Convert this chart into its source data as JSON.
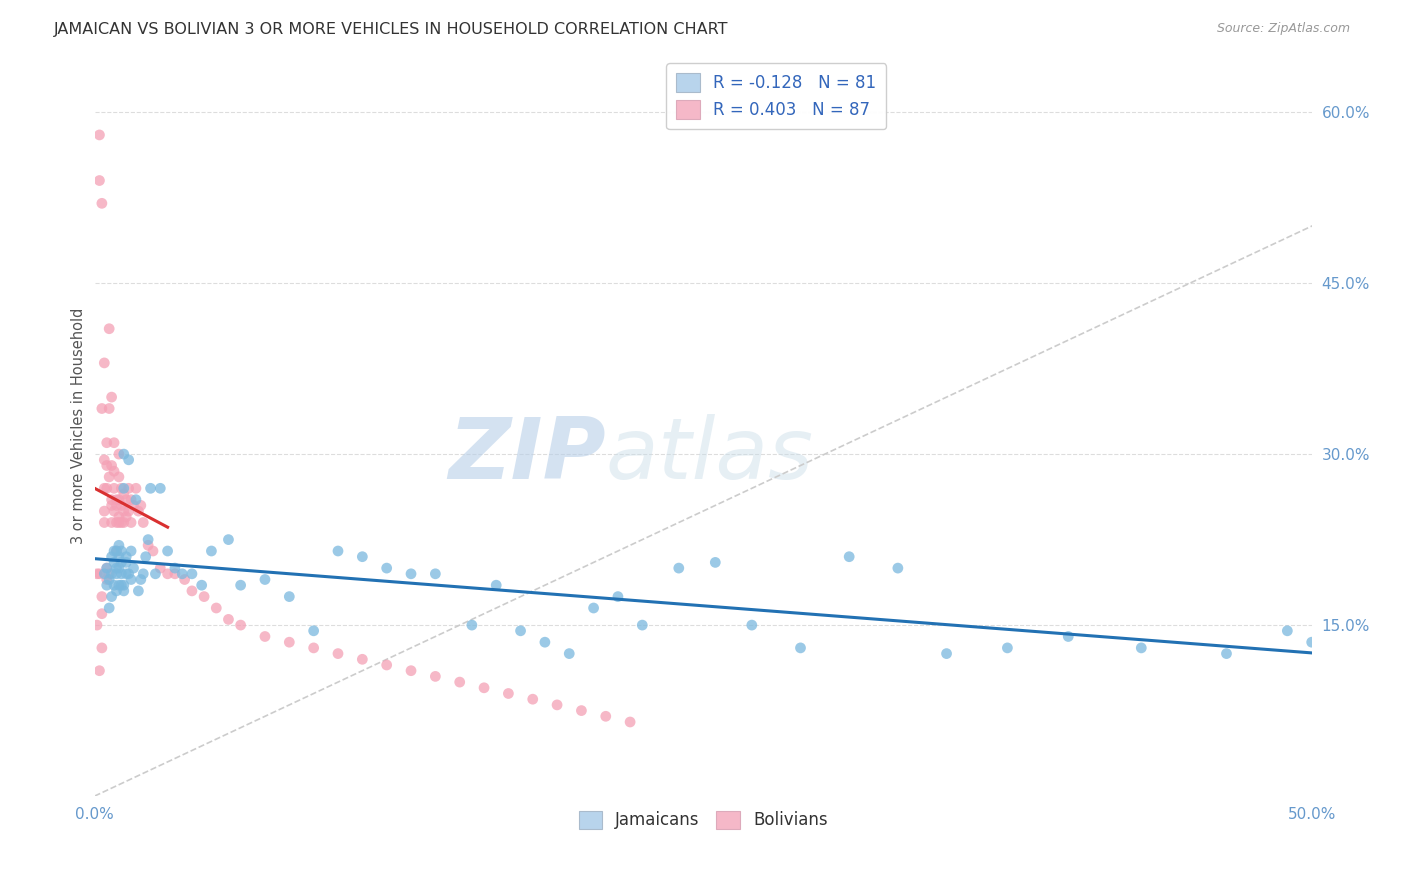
{
  "title": "JAMAICAN VS BOLIVIAN 3 OR MORE VEHICLES IN HOUSEHOLD CORRELATION CHART",
  "source": "Source: ZipAtlas.com",
  "ylabel": "3 or more Vehicles in Household",
  "xlim": [
    0.0,
    0.5
  ],
  "ylim": [
    0.0,
    0.65
  ],
  "xticks": [
    0.0,
    0.1,
    0.2,
    0.3,
    0.4,
    0.5
  ],
  "yticks_right": [
    0.15,
    0.3,
    0.45,
    0.6
  ],
  "ytick_labels_right": [
    "15.0%",
    "30.0%",
    "45.0%",
    "60.0%"
  ],
  "xtick_labels": [
    "0.0%",
    "",
    "",
    "",
    "",
    "50.0%"
  ],
  "legend_r1": "-0.128",
  "legend_n1": "81",
  "legend_r2": "0.403",
  "legend_n2": "87",
  "jamaican_color": "#7ab8de",
  "bolivian_color": "#f4a0b5",
  "trend_jamaican_color": "#2271b3",
  "trend_bolivian_color": "#d93030",
  "diagonal_color": "#cccccc",
  "background_color": "#ffffff",
  "grid_color": "#dddddd",
  "title_color": "#333333",
  "axis_color": "#6699cc",
  "watermark_zip": "ZIP",
  "watermark_atlas": "atlas",
  "jamaican_x": [
    0.004,
    0.005,
    0.005,
    0.006,
    0.006,
    0.007,
    0.007,
    0.007,
    0.008,
    0.008,
    0.008,
    0.009,
    0.009,
    0.009,
    0.009,
    0.01,
    0.01,
    0.01,
    0.01,
    0.011,
    0.011,
    0.011,
    0.011,
    0.012,
    0.012,
    0.012,
    0.012,
    0.013,
    0.013,
    0.013,
    0.014,
    0.014,
    0.015,
    0.015,
    0.016,
    0.017,
    0.018,
    0.019,
    0.02,
    0.021,
    0.022,
    0.023,
    0.025,
    0.027,
    0.03,
    0.033,
    0.036,
    0.04,
    0.044,
    0.048,
    0.055,
    0.06,
    0.07,
    0.08,
    0.09,
    0.1,
    0.11,
    0.12,
    0.13,
    0.14,
    0.155,
    0.165,
    0.175,
    0.185,
    0.195,
    0.205,
    0.215,
    0.225,
    0.24,
    0.255,
    0.27,
    0.29,
    0.31,
    0.33,
    0.35,
    0.375,
    0.4,
    0.43,
    0.465,
    0.49,
    0.5
  ],
  "jamaican_y": [
    0.195,
    0.185,
    0.2,
    0.165,
    0.19,
    0.175,
    0.195,
    0.21,
    0.185,
    0.205,
    0.215,
    0.18,
    0.195,
    0.2,
    0.215,
    0.185,
    0.2,
    0.21,
    0.22,
    0.185,
    0.195,
    0.205,
    0.215,
    0.18,
    0.3,
    0.27,
    0.185,
    0.195,
    0.205,
    0.21,
    0.195,
    0.295,
    0.215,
    0.19,
    0.2,
    0.26,
    0.18,
    0.19,
    0.195,
    0.21,
    0.225,
    0.27,
    0.195,
    0.27,
    0.215,
    0.2,
    0.195,
    0.195,
    0.185,
    0.215,
    0.225,
    0.185,
    0.19,
    0.175,
    0.145,
    0.215,
    0.21,
    0.2,
    0.195,
    0.195,
    0.15,
    0.185,
    0.145,
    0.135,
    0.125,
    0.165,
    0.175,
    0.15,
    0.2,
    0.205,
    0.15,
    0.13,
    0.21,
    0.2,
    0.125,
    0.13,
    0.14,
    0.13,
    0.125,
    0.145,
    0.135
  ],
  "bolivian_x": [
    0.001,
    0.001,
    0.002,
    0.002,
    0.002,
    0.002,
    0.003,
    0.003,
    0.003,
    0.003,
    0.003,
    0.004,
    0.004,
    0.004,
    0.004,
    0.004,
    0.005,
    0.005,
    0.005,
    0.005,
    0.005,
    0.006,
    0.006,
    0.006,
    0.006,
    0.007,
    0.007,
    0.007,
    0.007,
    0.007,
    0.008,
    0.008,
    0.008,
    0.008,
    0.009,
    0.009,
    0.009,
    0.009,
    0.01,
    0.01,
    0.01,
    0.01,
    0.01,
    0.011,
    0.011,
    0.011,
    0.012,
    0.012,
    0.012,
    0.013,
    0.013,
    0.014,
    0.014,
    0.015,
    0.015,
    0.016,
    0.017,
    0.018,
    0.019,
    0.02,
    0.022,
    0.024,
    0.027,
    0.03,
    0.033,
    0.037,
    0.04,
    0.045,
    0.05,
    0.055,
    0.06,
    0.07,
    0.08,
    0.09,
    0.1,
    0.11,
    0.12,
    0.13,
    0.14,
    0.15,
    0.16,
    0.17,
    0.18,
    0.19,
    0.2,
    0.21,
    0.22
  ],
  "bolivian_y": [
    0.195,
    0.15,
    0.58,
    0.11,
    0.195,
    0.54,
    0.52,
    0.13,
    0.175,
    0.34,
    0.16,
    0.38,
    0.295,
    0.27,
    0.25,
    0.24,
    0.31,
    0.29,
    0.27,
    0.2,
    0.19,
    0.41,
    0.34,
    0.28,
    0.195,
    0.35,
    0.29,
    0.26,
    0.255,
    0.24,
    0.31,
    0.285,
    0.27,
    0.25,
    0.26,
    0.24,
    0.255,
    0.215,
    0.3,
    0.28,
    0.26,
    0.245,
    0.24,
    0.27,
    0.255,
    0.24,
    0.265,
    0.25,
    0.24,
    0.26,
    0.245,
    0.27,
    0.25,
    0.26,
    0.24,
    0.255,
    0.27,
    0.25,
    0.255,
    0.24,
    0.22,
    0.215,
    0.2,
    0.195,
    0.195,
    0.19,
    0.18,
    0.175,
    0.165,
    0.155,
    0.15,
    0.14,
    0.135,
    0.13,
    0.125,
    0.12,
    0.115,
    0.11,
    0.105,
    0.1,
    0.095,
    0.09,
    0.085,
    0.08,
    0.075,
    0.07,
    0.065
  ]
}
